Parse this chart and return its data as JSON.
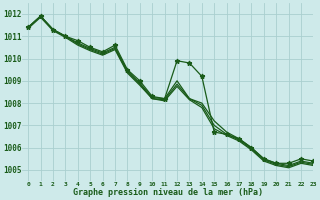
{
  "title": "Graphe pression niveau de la mer (hPa)",
  "bg_color": "#ceeaea",
  "grid_color": "#aacfcf",
  "line_color": "#1a5c1a",
  "xlim": [
    -0.5,
    23
  ],
  "ylim": [
    1004.5,
    1012.5
  ],
  "yticks": [
    1005,
    1006,
    1007,
    1008,
    1009,
    1010,
    1011,
    1012
  ],
  "xtick_labels": [
    "0",
    "1",
    "2",
    "3",
    "4",
    "5",
    "6",
    "7",
    "8",
    "9",
    "10",
    "11",
    "12",
    "13",
    "14",
    "15",
    "16",
    "17",
    "18",
    "19",
    "20",
    "21",
    "22",
    "23"
  ],
  "series": [
    {
      "y": [
        1011.4,
        1011.9,
        1011.3,
        1011.0,
        1010.8,
        1010.5,
        1010.3,
        1010.6,
        1009.5,
        1009.0,
        1008.3,
        1008.2,
        1009.9,
        1009.8,
        1009.2,
        1006.7,
        1006.6,
        1006.4,
        1006.0,
        1005.5,
        1005.3,
        1005.3,
        1005.5,
        1005.4
      ],
      "marker": true,
      "lw": 0.9
    },
    {
      "y": [
        1011.4,
        1011.9,
        1011.3,
        1011.0,
        1010.7,
        1010.45,
        1010.25,
        1010.5,
        1009.45,
        1008.9,
        1008.25,
        1008.2,
        1009.0,
        1008.2,
        1008.0,
        1007.2,
        1006.7,
        1006.4,
        1006.0,
        1005.5,
        1005.3,
        1005.2,
        1005.4,
        1005.3
      ],
      "marker": false,
      "lw": 0.9
    },
    {
      "y": [
        1011.4,
        1011.9,
        1011.3,
        1011.0,
        1010.65,
        1010.4,
        1010.2,
        1010.45,
        1009.4,
        1008.85,
        1008.2,
        1008.15,
        1008.85,
        1008.2,
        1007.9,
        1007.0,
        1006.6,
        1006.35,
        1005.95,
        1005.45,
        1005.25,
        1005.15,
        1005.35,
        1005.25
      ],
      "marker": false,
      "lw": 0.9
    },
    {
      "y": [
        1011.35,
        1011.85,
        1011.25,
        1010.95,
        1010.6,
        1010.35,
        1010.15,
        1010.4,
        1009.35,
        1008.8,
        1008.2,
        1008.1,
        1008.75,
        1008.15,
        1007.8,
        1006.85,
        1006.55,
        1006.3,
        1005.9,
        1005.4,
        1005.2,
        1005.1,
        1005.3,
        1005.2
      ],
      "marker": false,
      "lw": 0.9
    }
  ]
}
